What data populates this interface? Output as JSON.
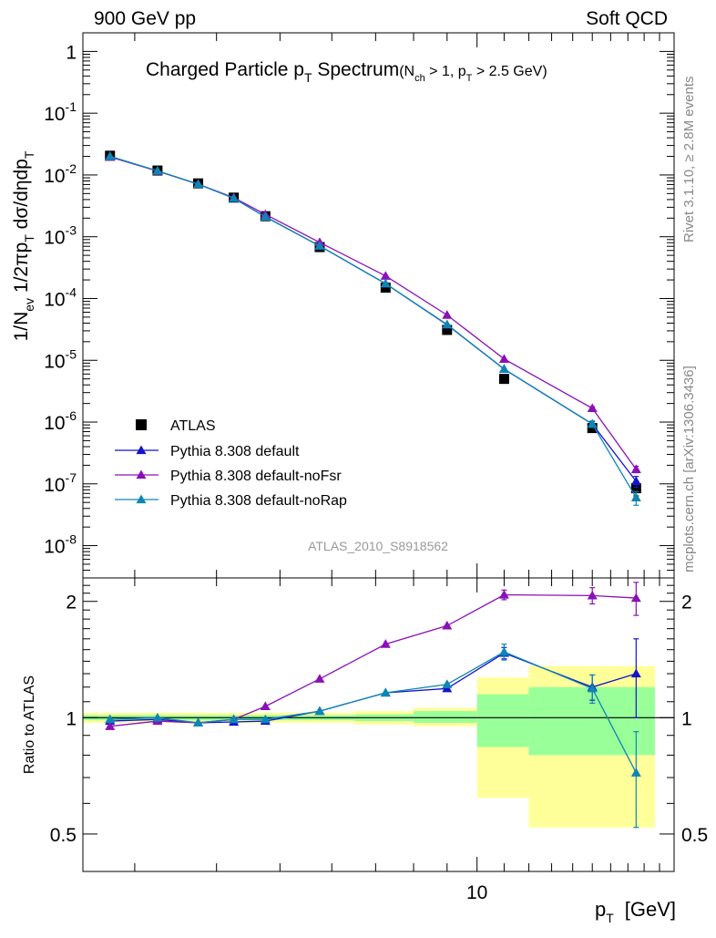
{
  "header": {
    "left": "900 GeV pp",
    "right": "Soft QCD"
  },
  "side": {
    "top": "Rivet 3.1.10, ≥ 2.8M events",
    "bottom": "mcplots.cern.ch [arXiv:1306.3436]"
  },
  "analysis_id": "ATLAS_2010_S8918562",
  "colors": {
    "data": "#000000",
    "default": "#1515c8",
    "noFsr": "#8a10b8",
    "noRap": "#0d86b4",
    "band_syst": "#ffff99",
    "band_stat": "#99ff99"
  },
  "chart_data": [
    {
      "type": "line",
      "title": "Charged Particle pT Spectrum (Nch > 1, pT > 2.5 GeV)",
      "title_parts": {
        "main": "Charged Particle p",
        "main_sub": "T",
        "main_tail": " Spectrum",
        "paren_open": "(N",
        "paren_sub1": "ch",
        "paren_mid": " > 1, p",
        "paren_sub2": "T",
        "paren_tail": " > 2.5 GeV)"
      },
      "ylabel": "1/Nev 1/2πpT dσ/dηdpT",
      "ylabel_parts": {
        "a": "1/N",
        "a_sub": "ev",
        "b": " 1/2πp",
        "b_sub": "T",
        "c": " dσ/dηdp",
        "c_sub": "T"
      },
      "yscale": "log",
      "ylim": [
        3e-09,
        2
      ],
      "yticks": [
        {
          "base": "10",
          "exp": "-8",
          "value": 1e-08
        },
        {
          "base": "10",
          "exp": "-7",
          "value": 1e-07
        },
        {
          "base": "10",
          "exp": "-6",
          "value": 1e-06
        },
        {
          "base": "10",
          "exp": "-5",
          "value": 1e-05
        },
        {
          "base": "10",
          "exp": "-4",
          "value": 0.0001
        },
        {
          "base": "10",
          "exp": "-3",
          "value": 0.001
        },
        {
          "base": "10",
          "exp": "-2",
          "value": 0.01
        },
        {
          "base": "10",
          "exp": "-1",
          "value": 0.1
        },
        {
          "base": "1",
          "exp": "",
          "value": 1
        }
      ],
      "xscale": "log",
      "xlim": [
        2.5,
        20
      ],
      "x": [
        2.75,
        3.25,
        3.75,
        4.25,
        4.75,
        5.75,
        7.25,
        9.0,
        11.0,
        15.0,
        17.5
      ],
      "series": [
        {
          "name": "ATLAS",
          "marker": "square",
          "values": [
            0.0205,
            0.0118,
            0.0073,
            0.0043,
            0.00215,
            0.00068,
            0.00015,
            3.1e-05,
            5e-06,
            8e-07,
            8.5e-08
          ],
          "err_rel": [
            0,
            0,
            0,
            0,
            0,
            0,
            0,
            0,
            0,
            0.12,
            0.25
          ]
        },
        {
          "name": "Pythia 8.308 default",
          "marker": "triangle",
          "values": [
            0.02,
            0.0116,
            0.0071,
            0.0042,
            0.0021,
            0.00071,
            0.000174,
            3.75e-05,
            7.2e-06,
            9.3e-07,
            1.1e-07
          ],
          "err_rel": [
            0,
            0,
            0,
            0,
            0,
            0,
            0,
            0,
            0,
            0.1,
            0.2
          ]
        },
        {
          "name": "Pythia 8.308 default-noFsr",
          "marker": "triangle",
          "values": [
            0.0195,
            0.0116,
            0.0071,
            0.0043,
            0.0023,
            0.00081,
            0.000232,
            5.4e-05,
            1.05e-05,
            1.67e-06,
            1.72e-07
          ],
          "err_rel": [
            0,
            0,
            0,
            0,
            0,
            0,
            0,
            0,
            0,
            0.06,
            0.12
          ]
        },
        {
          "name": "Pythia 8.308 default-noRap",
          "marker": "triangle",
          "values": [
            0.02,
            0.0117,
            0.0071,
            0.0042,
            0.0021,
            0.00071,
            0.000174,
            3.8e-05,
            7.2e-06,
            9.3e-07,
            6e-08
          ],
          "err_rel": [
            0,
            0,
            0,
            0,
            0,
            0,
            0,
            0,
            0,
            0.12,
            0.25
          ]
        }
      ],
      "legend": {
        "position": "bottom-left",
        "entries": [
          "ATLAS",
          "Pythia 8.308 default",
          "Pythia 8.308 default-noFsr",
          "Pythia 8.308 default-noRap"
        ]
      }
    },
    {
      "type": "line",
      "ylabel": "Ratio to ATLAS",
      "xlabel": "pT [GeV]",
      "xlabel_parts": {
        "a": "p",
        "a_sub": "T",
        "b": "[GeV]"
      },
      "xscale": "log",
      "xlim": [
        2.5,
        20
      ],
      "xtick_labels": [
        {
          "label": "10",
          "value": 10
        }
      ],
      "ylim": [
        0.4,
        2.3
      ],
      "ytick_labels": [
        {
          "label": "0.5",
          "value": 0.5
        },
        {
          "label": "1",
          "value": 1
        },
        {
          "label": "2",
          "value": 2
        }
      ],
      "x": [
        2.75,
        3.25,
        3.75,
        4.25,
        4.75,
        5.75,
        7.25,
        9.0,
        11.0,
        15.0,
        17.5
      ],
      "series": [
        {
          "name": "Pythia 8.308 default",
          "values": [
            0.98,
            0.99,
            0.97,
            0.975,
            0.98,
            1.04,
            1.16,
            1.19,
            1.47,
            1.2,
            1.3
          ],
          "err": [
            0,
            0,
            0,
            0,
            0,
            0,
            0,
            0,
            0.05,
            0.09,
            0.3
          ]
        },
        {
          "name": "Pythia 8.308 default-noFsr",
          "values": [
            0.95,
            0.98,
            0.97,
            0.99,
            1.07,
            1.26,
            1.55,
            1.73,
            2.08,
            2.07,
            2.04
          ],
          "err": [
            0,
            0,
            0,
            0,
            0,
            0,
            0,
            0,
            0.06,
            0.1,
            0.2
          ]
        },
        {
          "name": "Pythia 8.308 default-noRap",
          "values": [
            0.99,
            1.0,
            0.97,
            0.99,
            0.99,
            1.04,
            1.16,
            1.22,
            1.48,
            1.19,
            0.72
          ],
          "err": [
            0,
            0,
            0,
            0,
            0,
            0,
            0,
            0,
            0.07,
            0.1,
            0.2
          ]
        }
      ],
      "bands": {
        "edges": [
          2.5,
          3.0,
          3.5,
          4.0,
          4.5,
          5.0,
          6.5,
          8.0,
          10.0,
          12.0,
          18.0
        ],
        "syst": [
          [
            0.97,
            1.03
          ],
          [
            0.97,
            1.03
          ],
          [
            0.97,
            1.03
          ],
          [
            0.97,
            1.03
          ],
          [
            0.97,
            1.03
          ],
          [
            0.97,
            1.03
          ],
          [
            0.96,
            1.04
          ],
          [
            0.95,
            1.06
          ],
          [
            0.62,
            1.27
          ],
          [
            0.52,
            1.36
          ],
          [
            0.52,
            1.36
          ]
        ],
        "stat": [
          [
            0.985,
            1.015
          ],
          [
            0.985,
            1.015
          ],
          [
            0.985,
            1.015
          ],
          [
            0.985,
            1.015
          ],
          [
            0.985,
            1.015
          ],
          [
            0.985,
            1.015
          ],
          [
            0.98,
            1.02
          ],
          [
            0.97,
            1.04
          ],
          [
            0.84,
            1.15
          ],
          [
            0.8,
            1.2
          ],
          [
            0.8,
            1.2
          ]
        ]
      }
    }
  ]
}
